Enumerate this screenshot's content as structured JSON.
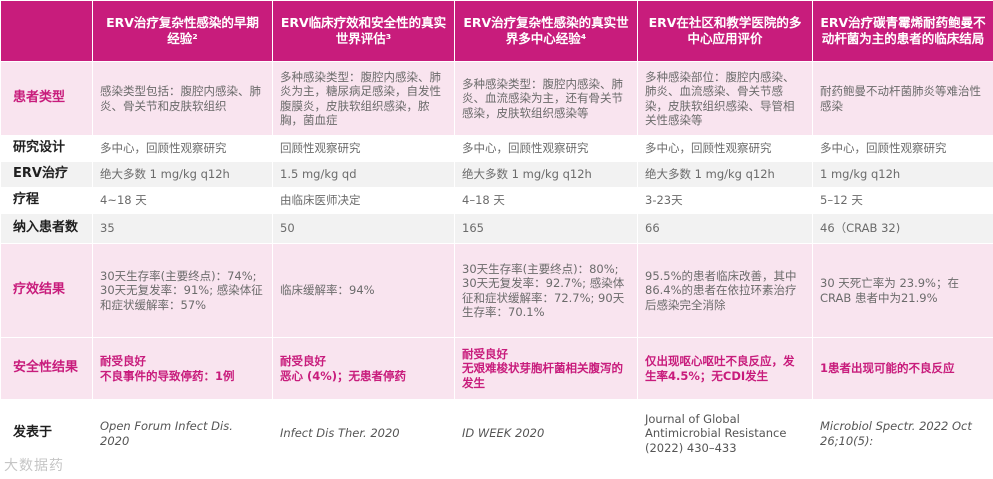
{
  "headers": [
    "",
    "ERV治疗复杂性感染的早期经验²",
    "ERV临床疗效和安全性的真实世界评估³",
    "ERV治疗复杂性感染的真实世界多中心经验⁴",
    "ERV在社区和教学医院的多中心应用评价",
    "ERV治疗碳青霉烯耐药鲍曼不动杆菌为主的患者的临床结局"
  ],
  "rows": [
    {
      "label": "患者类型",
      "cells": [
        "感染类型包括：腹腔内感染、肺炎、骨关节和皮肤软组织",
        "多种感染类型：腹腔内感染、肺炎为主，糖尿病足感染，自发性腹膜炎，皮肤软组织感染，脓胸，菌血症",
        "多种感染类型：腹腔内感染、肺炎、血流感染为主，还有骨关节感染，皮肤软组织感染等",
        "多种感染部位：腹腔内感染、肺炎、血流感染、骨关节感染，皮肤软组织感染、导管相关性感染等",
        "耐药鲍曼不动杆菌肺炎等难治性感染"
      ]
    },
    {
      "label": "研究设计",
      "cells": [
        "多中心，回顾性观察研究",
        "回顾性观察研究",
        "多中心，回顾性观察研究",
        "多中心，回顾性观察研究",
        "多中心，回顾性观察研究"
      ]
    },
    {
      "label": "ERV治疗",
      "cells": [
        "绝大多数 1 mg/kg q12h",
        "1.5 mg/kg qd",
        "绝大多数 1 mg/kg q12h",
        "绝大多数 1 mg/kg q12h",
        "1 mg/kg q12h"
      ]
    },
    {
      "label": "疗程",
      "cells": [
        "4~18 天",
        "由临床医师决定",
        "4–18 天",
        "3-23天",
        "5–12 天"
      ]
    },
    {
      "label": "纳入患者数",
      "cells": [
        "35",
        "50",
        "165",
        "66",
        "46（CRAB 32)"
      ]
    },
    {
      "label": "疗效结果",
      "cells": [
        "30天生存率(主要终点)：74%; 30天无复发率：91%; 感染体征和症状缓解率：57%",
        "临床缓解率：94%",
        "30天生存率(主要终点)：80%; 30天无复发率：92.7%; 感染体征和症状缓解率：72.7%; 90天生存率：70.1%",
        "95.5%的患者临床改善，其中86.4%的患者在依拉环素治疗后感染完全消除",
        "30 天死亡率为 23.9%；在 CRAB 患者中为21.9%"
      ]
    },
    {
      "label": "安全性结果",
      "cells": [
        "耐受良好\n不良事件的导致停药：1例",
        "耐受良好\n恶心 (4%)；无患者停药",
        "耐受良好\n无艰难梭状芽胞杆菌相关腹泻的发生",
        "仅出现呕心呕吐不良反应，发生率4.5%；无CDI发生",
        "1患者出现可能的不良反应"
      ]
    },
    {
      "label": "发表于",
      "cells": [
        "Open Forum Infect Dis. 2020",
        "Infect Dis Ther. 2020",
        "ID WEEK 2020",
        "Journal of Global Antimicrobial Resistance (2022) 430–433",
        "Microbiol Spectr. 2022 Oct 26;10(5):"
      ]
    }
  ],
  "watermark": "大数据药"
}
